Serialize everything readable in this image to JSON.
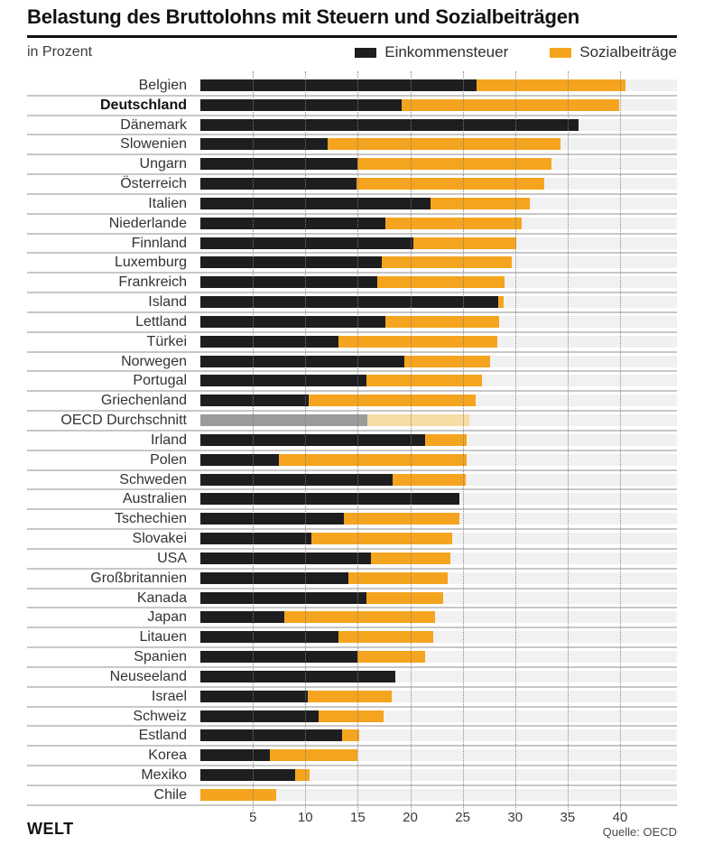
{
  "title": "Belastung des Bruttolohns mit Steuern und Sozialbeiträgen",
  "subtitle": "in Prozent",
  "legend": {
    "einkommensteuer_label": "Einkommensteuer",
    "sozialbeitraege_label": "Sozialbeiträge"
  },
  "source": "Quelle: OECD",
  "brand": "WELT",
  "colors": {
    "einkommensteuer": "#1e1e20",
    "sozialbeitraege": "#f5a41f",
    "oecd_einkommensteuer": "#9b9b9b",
    "oecd_sozialbeitraege": "#f8dca6"
  },
  "chart_data": {
    "type": "bar",
    "orientation": "horizontal",
    "stacked": true,
    "series_names": [
      "Einkommensteuer",
      "Sozialbeiträge"
    ],
    "xlim": [
      0,
      40
    ],
    "xticks": [
      5,
      10,
      15,
      20,
      25,
      30,
      35,
      40
    ],
    "grid": "dotted-vertical",
    "legend_position": "top-right",
    "highlight_country": "Deutschland",
    "average_row": "OECD Durchschnitt",
    "rows": [
      {
        "country": "Belgien",
        "einkommensteuer": 26.3,
        "sozialbeitraege": 14.2
      },
      {
        "country": "Deutschland",
        "einkommensteuer": 19.2,
        "sozialbeitraege": 20.7
      },
      {
        "country": "Dänemark",
        "einkommensteuer": 36.0,
        "sozialbeitraege": 0
      },
      {
        "country": "Slowenien",
        "einkommensteuer": 12.1,
        "sozialbeitraege": 22.2
      },
      {
        "country": "Ungarn",
        "einkommensteuer": 15.0,
        "sozialbeitraege": 18.5
      },
      {
        "country": "Österreich",
        "einkommensteuer": 14.9,
        "sozialbeitraege": 17.9
      },
      {
        "country": "Italien",
        "einkommensteuer": 21.9,
        "sozialbeitraege": 9.5
      },
      {
        "country": "Niederlande",
        "einkommensteuer": 17.6,
        "sozialbeitraege": 13.0
      },
      {
        "country": "Finnland",
        "einkommensteuer": 20.3,
        "sozialbeitraege": 9.8
      },
      {
        "country": "Luxemburg",
        "einkommensteuer": 17.3,
        "sozialbeitraege": 12.4
      },
      {
        "country": "Frankreich",
        "einkommensteuer": 16.9,
        "sozialbeitraege": 12.1
      },
      {
        "country": "Island",
        "einkommensteuer": 28.4,
        "sozialbeitraege": 0.5
      },
      {
        "country": "Lettland",
        "einkommensteuer": 17.6,
        "sozialbeitraege": 10.9
      },
      {
        "country": "Türkei",
        "einkommensteuer": 13.2,
        "sozialbeitraege": 15.1
      },
      {
        "country": "Norwegen",
        "einkommensteuer": 19.4,
        "sozialbeitraege": 8.2
      },
      {
        "country": "Portugal",
        "einkommensteuer": 15.8,
        "sozialbeitraege": 11.0
      },
      {
        "country": "Griechenland",
        "einkommensteuer": 10.3,
        "sozialbeitraege": 15.9
      },
      {
        "country": "OECD Durchschnitt",
        "einkommensteuer": 15.9,
        "sozialbeitraege": 9.7,
        "average": true
      },
      {
        "country": "Irland",
        "einkommensteuer": 21.4,
        "sozialbeitraege": 4.0
      },
      {
        "country": "Polen",
        "einkommensteuer": 7.5,
        "sozialbeitraege": 17.9
      },
      {
        "country": "Schweden",
        "einkommensteuer": 18.3,
        "sozialbeitraege": 7.0
      },
      {
        "country": "Australien",
        "einkommensteuer": 24.7,
        "sozialbeitraege": 0
      },
      {
        "country": "Tschechien",
        "einkommensteuer": 13.7,
        "sozialbeitraege": 11.0
      },
      {
        "country": "Slovakei",
        "einkommensteuer": 10.6,
        "sozialbeitraege": 13.4
      },
      {
        "country": "USA",
        "einkommensteuer": 16.3,
        "sozialbeitraege": 7.5
      },
      {
        "country": "Großbritannien",
        "einkommensteuer": 14.1,
        "sozialbeitraege": 9.5
      },
      {
        "country": "Kanada",
        "einkommensteuer": 15.8,
        "sozialbeitraege": 7.3
      },
      {
        "country": "Japan",
        "einkommensteuer": 8.0,
        "sozialbeitraege": 14.4
      },
      {
        "country": "Litauen",
        "einkommensteuer": 13.2,
        "sozialbeitraege": 9.0
      },
      {
        "country": "Spanien",
        "einkommensteuer": 15.0,
        "sozialbeitraege": 6.4
      },
      {
        "country": "Neuseeland",
        "einkommensteuer": 18.6,
        "sozialbeitraege": 0
      },
      {
        "country": "Israel",
        "einkommensteuer": 10.2,
        "sozialbeitraege": 8.0
      },
      {
        "country": "Schweiz",
        "einkommensteuer": 11.3,
        "sozialbeitraege": 6.2
      },
      {
        "country": "Estland",
        "einkommensteuer": 13.5,
        "sozialbeitraege": 1.6
      },
      {
        "country": "Korea",
        "einkommensteuer": 6.6,
        "sozialbeitraege": 8.4
      },
      {
        "country": "Mexiko",
        "einkommensteuer": 9.0,
        "sozialbeitraege": 1.4
      },
      {
        "country": "Chile",
        "einkommensteuer": 0,
        "sozialbeitraege": 7.2
      }
    ]
  }
}
